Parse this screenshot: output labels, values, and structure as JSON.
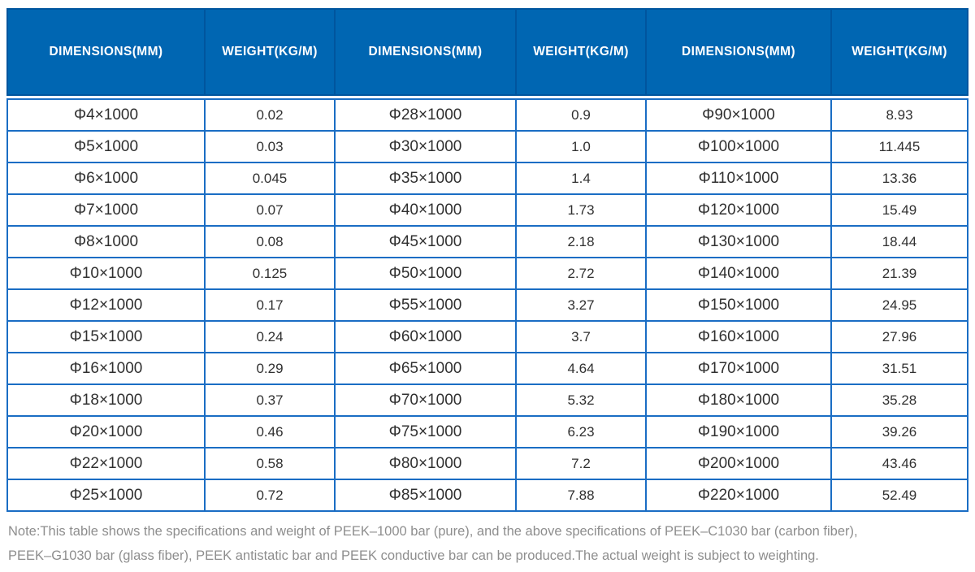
{
  "table": {
    "columns": [
      "DIMENSIONS(MM)",
      "WEIGHT(KG/M)",
      "DIMENSIONS(MM)",
      "WEIGHT(KG/M)",
      "DIMENSIONS(MM)",
      "WEIGHT(KG/M)"
    ],
    "rows": [
      [
        "Φ4×1000",
        "0.02",
        "Φ28×1000",
        "0.9",
        "Φ90×1000",
        "8.93"
      ],
      [
        "Φ5×1000",
        "0.03",
        "Φ30×1000",
        "1.0",
        "Φ100×1000",
        "11.445"
      ],
      [
        "Φ6×1000",
        "0.045",
        "Φ35×1000",
        "1.4",
        "Φ110×1000",
        "13.36"
      ],
      [
        "Φ7×1000",
        "0.07",
        "Φ40×1000",
        "1.73",
        "Φ120×1000",
        "15.49"
      ],
      [
        "Φ8×1000",
        "0.08",
        "Φ45×1000",
        "2.18",
        "Φ130×1000",
        "18.44"
      ],
      [
        "Φ10×1000",
        "0.125",
        "Φ50×1000",
        "2.72",
        "Φ140×1000",
        "21.39"
      ],
      [
        "Φ12×1000",
        "0.17",
        "Φ55×1000",
        "3.27",
        "Φ150×1000",
        "24.95"
      ],
      [
        "Φ15×1000",
        "0.24",
        "Φ60×1000",
        "3.7",
        "Φ160×1000",
        "27.96"
      ],
      [
        "Φ16×1000",
        "0.29",
        "Φ65×1000",
        "4.64",
        "Φ170×1000",
        "31.51"
      ],
      [
        "Φ18×1000",
        "0.37",
        "Φ70×1000",
        "5.32",
        "Φ180×1000",
        "35.28"
      ],
      [
        "Φ20×1000",
        "0.46",
        "Φ75×1000",
        "6.23",
        "Φ190×1000",
        "39.26"
      ],
      [
        "Φ22×1000",
        "0.58",
        "Φ80×1000",
        "7.2",
        "Φ200×1000",
        "43.46"
      ],
      [
        "Φ25×1000",
        "0.72",
        "Φ85×1000",
        "7.88",
        "Φ220×1000",
        "52.49"
      ]
    ]
  },
  "note": {
    "lines": [
      "Note:This table shows the specifications and weight of PEEK–1000 bar (pure), and the above specifications of PEEK–C1030 bar (carbon fiber),",
      "PEEK–G1030 bar (glass fiber), PEEK antistatic bar and PEEK conductive bar can be produced.The actual weight is subject to weighting."
    ]
  },
  "colors": {
    "header_bg": "#0066b2",
    "header_divider": "#00559e",
    "body_border": "#1a6dc4",
    "body_text": "#303030",
    "note_text": "#8e8e8e"
  }
}
